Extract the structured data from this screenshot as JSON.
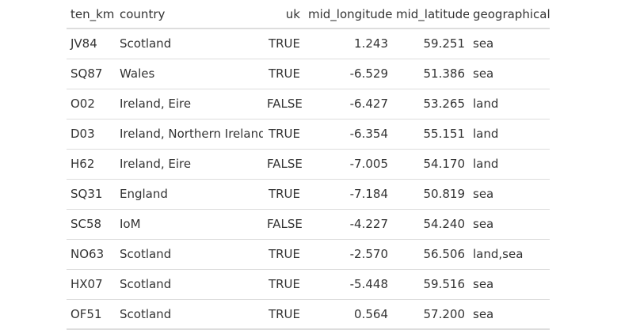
{
  "table": {
    "headers": {
      "ten_km": "ten_km",
      "country": "country",
      "uk": "uk",
      "mid_longitude": "mid_longitude",
      "mid_latitude": "mid_latitude",
      "geographical": "geographical"
    },
    "rows": [
      {
        "ten_km": "JV84",
        "country": "Scotland",
        "uk": "TRUE",
        "mid_longitude": "1.243",
        "mid_latitude": "59.251",
        "geographical": "sea"
      },
      {
        "ten_km": "SQ87",
        "country": "Wales",
        "uk": "TRUE",
        "mid_longitude": "-6.529",
        "mid_latitude": "51.386",
        "geographical": "sea"
      },
      {
        "ten_km": "O02",
        "country": "Ireland, Eire",
        "uk": "FALSE",
        "mid_longitude": "-6.427",
        "mid_latitude": "53.265",
        "geographical": "land"
      },
      {
        "ten_km": "D03",
        "country": "Ireland, Northern Ireland",
        "uk": "TRUE",
        "mid_longitude": "-6.354",
        "mid_latitude": "55.151",
        "geographical": "land"
      },
      {
        "ten_km": "H62",
        "country": "Ireland, Eire",
        "uk": "FALSE",
        "mid_longitude": "-7.005",
        "mid_latitude": "54.170",
        "geographical": "land"
      },
      {
        "ten_km": "SQ31",
        "country": "England",
        "uk": "TRUE",
        "mid_longitude": "-7.184",
        "mid_latitude": "50.819",
        "geographical": "sea"
      },
      {
        "ten_km": "SC58",
        "country": "IoM",
        "uk": "FALSE",
        "mid_longitude": "-4.227",
        "mid_latitude": "54.240",
        "geographical": "sea"
      },
      {
        "ten_km": "NO63",
        "country": "Scotland",
        "uk": "TRUE",
        "mid_longitude": "-2.570",
        "mid_latitude": "56.506",
        "geographical": "land,sea"
      },
      {
        "ten_km": "HX07",
        "country": "Scotland",
        "uk": "TRUE",
        "mid_longitude": "-5.448",
        "mid_latitude": "59.516",
        "geographical": "sea"
      },
      {
        "ten_km": "OF51",
        "country": "Scotland",
        "uk": "TRUE",
        "mid_longitude": "0.564",
        "mid_latitude": "57.200",
        "geographical": "sea"
      }
    ]
  }
}
